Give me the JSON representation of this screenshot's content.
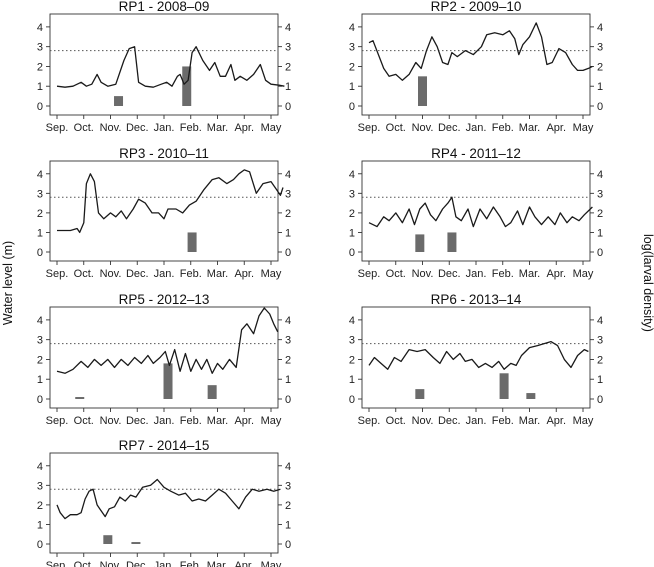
{
  "figure": {
    "y_label_left": "Water level (m)",
    "y_label_right": "log(larval density)"
  },
  "chart_data": [
    {
      "type": "line",
      "title": "RP1 - 2008–09",
      "x_categories": [
        "Sep.",
        "Oct.",
        "Nov.",
        "Dec.",
        "Jan.",
        "Feb.",
        "Mar.",
        "Apr.",
        "May"
      ],
      "ylim_left": [
        0,
        4.5
      ],
      "yticks_left": [
        0,
        1,
        2,
        3,
        4
      ],
      "ylim_right": [
        0,
        4.5
      ],
      "yticks_right": [
        0,
        1,
        2,
        3,
        4
      ],
      "reference_line": 2.8,
      "water_level": [
        [
          0,
          1.0
        ],
        [
          0.3,
          0.95
        ],
        [
          0.6,
          1.0
        ],
        [
          0.9,
          1.2
        ],
        [
          1.1,
          1.0
        ],
        [
          1.3,
          1.1
        ],
        [
          1.5,
          1.6
        ],
        [
          1.65,
          1.2
        ],
        [
          1.9,
          1.0
        ],
        [
          2.2,
          1.1
        ],
        [
          2.5,
          2.3
        ],
        [
          2.7,
          2.9
        ],
        [
          2.9,
          3.0
        ],
        [
          3.05,
          1.2
        ],
        [
          3.3,
          1.0
        ],
        [
          3.6,
          0.95
        ],
        [
          3.9,
          1.1
        ],
        [
          4.1,
          1.2
        ],
        [
          4.3,
          1.0
        ],
        [
          4.5,
          1.5
        ],
        [
          4.6,
          1.6
        ],
        [
          4.75,
          1.1
        ],
        [
          4.9,
          1.3
        ],
        [
          5.05,
          2.7
        ],
        [
          5.2,
          3.0
        ],
        [
          5.45,
          2.3
        ],
        [
          5.7,
          1.8
        ],
        [
          5.9,
          2.2
        ],
        [
          6.1,
          1.5
        ],
        [
          6.3,
          1.5
        ],
        [
          6.5,
          2.1
        ],
        [
          6.65,
          1.3
        ],
        [
          6.85,
          1.5
        ],
        [
          7.1,
          1.3
        ],
        [
          7.35,
          1.6
        ],
        [
          7.6,
          2.1
        ],
        [
          7.8,
          1.3
        ],
        [
          8.0,
          1.1
        ],
        [
          8.3,
          1.05
        ],
        [
          8.5,
          1.0
        ]
      ],
      "larval_density": [
        {
          "x": 2.3,
          "value": 0.5
        },
        {
          "x": 4.85,
          "value": 2.0
        }
      ]
    },
    {
      "type": "line",
      "title": "RP2 - 2009–10",
      "x_categories": [
        "Sep.",
        "Oct.",
        "Nov.",
        "Dec.",
        "Jan.",
        "Feb.",
        "Mar.",
        "Apr.",
        "May"
      ],
      "ylim_left": [
        0,
        4.5
      ],
      "yticks_left": [
        0,
        1,
        2,
        3,
        4
      ],
      "ylim_right": [
        0,
        4.5
      ],
      "yticks_right": [
        0,
        1,
        2,
        3,
        4
      ],
      "reference_line": 2.8,
      "water_level": [
        [
          0,
          3.2
        ],
        [
          0.15,
          3.3
        ],
        [
          0.35,
          2.6
        ],
        [
          0.55,
          1.9
        ],
        [
          0.75,
          1.5
        ],
        [
          1.0,
          1.6
        ],
        [
          1.25,
          1.3
        ],
        [
          1.5,
          1.6
        ],
        [
          1.75,
          2.2
        ],
        [
          1.95,
          1.9
        ],
        [
          2.15,
          2.8
        ],
        [
          2.35,
          3.5
        ],
        [
          2.55,
          3.0
        ],
        [
          2.75,
          2.2
        ],
        [
          2.95,
          2.1
        ],
        [
          3.1,
          2.7
        ],
        [
          3.3,
          2.5
        ],
        [
          3.6,
          2.8
        ],
        [
          3.9,
          2.6
        ],
        [
          4.2,
          3.0
        ],
        [
          4.4,
          3.6
        ],
        [
          4.7,
          3.7
        ],
        [
          5.0,
          3.6
        ],
        [
          5.25,
          3.8
        ],
        [
          5.45,
          3.4
        ],
        [
          5.6,
          2.6
        ],
        [
          5.75,
          3.1
        ],
        [
          6.0,
          3.5
        ],
        [
          6.25,
          4.2
        ],
        [
          6.45,
          3.5
        ],
        [
          6.65,
          2.1
        ],
        [
          6.85,
          2.2
        ],
        [
          7.1,
          2.9
        ],
        [
          7.35,
          2.7
        ],
        [
          7.6,
          2.1
        ],
        [
          7.8,
          1.8
        ],
        [
          8.0,
          1.8
        ],
        [
          8.2,
          1.9
        ],
        [
          8.35,
          2.0
        ]
      ],
      "larval_density": [
        {
          "x": 2.0,
          "value": 1.5
        }
      ]
    },
    {
      "type": "line",
      "title": "RP3 - 2010–11",
      "x_categories": [
        "Sep.",
        "Oct.",
        "Nov.",
        "Dec.",
        "Jan.",
        "Feb.",
        "Mar.",
        "Apr.",
        "May"
      ],
      "ylim_left": [
        0,
        4.5
      ],
      "yticks_left": [
        0,
        1,
        2,
        3,
        4
      ],
      "ylim_right": [
        0,
        4.5
      ],
      "yticks_right": [
        0,
        1,
        2,
        3,
        4
      ],
      "reference_line": 2.8,
      "water_level": [
        [
          0,
          1.1
        ],
        [
          0.5,
          1.1
        ],
        [
          0.75,
          1.2
        ],
        [
          0.85,
          1.0
        ],
        [
          1.0,
          1.5
        ],
        [
          1.1,
          3.5
        ],
        [
          1.25,
          4.0
        ],
        [
          1.4,
          3.6
        ],
        [
          1.55,
          2.0
        ],
        [
          1.75,
          1.7
        ],
        [
          2.0,
          2.0
        ],
        [
          2.2,
          1.8
        ],
        [
          2.4,
          2.1
        ],
        [
          2.6,
          1.7
        ],
        [
          2.85,
          2.2
        ],
        [
          3.05,
          2.7
        ],
        [
          3.3,
          2.5
        ],
        [
          3.55,
          2.0
        ],
        [
          3.8,
          2.0
        ],
        [
          4.0,
          1.7
        ],
        [
          4.15,
          2.2
        ],
        [
          4.45,
          2.2
        ],
        [
          4.7,
          2.0
        ],
        [
          4.95,
          2.4
        ],
        [
          5.2,
          2.6
        ],
        [
          5.5,
          3.2
        ],
        [
          5.8,
          3.7
        ],
        [
          6.05,
          3.8
        ],
        [
          6.35,
          3.5
        ],
        [
          6.6,
          3.7
        ],
        [
          6.8,
          4.0
        ],
        [
          7.0,
          4.2
        ],
        [
          7.2,
          4.1
        ],
        [
          7.45,
          3.0
        ],
        [
          7.7,
          3.5
        ],
        [
          8.0,
          3.6
        ],
        [
          8.2,
          3.2
        ],
        [
          8.35,
          2.9
        ],
        [
          8.45,
          3.3
        ]
      ],
      "larval_density": [
        {
          "x": 5.05,
          "value": 1.0
        }
      ]
    },
    {
      "type": "line",
      "title": "RP4 - 2011–12",
      "x_categories": [
        "Sep.",
        "Oct.",
        "Nov.",
        "Dec.",
        "Jan.",
        "Feb.",
        "Mar.",
        "Apr.",
        "May"
      ],
      "ylim_left": [
        0,
        4.5
      ],
      "yticks_left": [
        0,
        1,
        2,
        3,
        4
      ],
      "ylim_right": [
        0,
        4.5
      ],
      "yticks_right": [
        0,
        1,
        2,
        3,
        4
      ],
      "reference_line": 2.8,
      "water_level": [
        [
          0,
          1.5
        ],
        [
          0.3,
          1.3
        ],
        [
          0.55,
          1.8
        ],
        [
          0.75,
          1.6
        ],
        [
          1.0,
          2.0
        ],
        [
          1.25,
          1.5
        ],
        [
          1.5,
          2.2
        ],
        [
          1.7,
          1.4
        ],
        [
          1.9,
          2.2
        ],
        [
          2.1,
          2.5
        ],
        [
          2.3,
          1.9
        ],
        [
          2.5,
          1.6
        ],
        [
          2.75,
          2.2
        ],
        [
          2.95,
          2.5
        ],
        [
          3.1,
          2.8
        ],
        [
          3.25,
          1.8
        ],
        [
          3.45,
          1.6
        ],
        [
          3.7,
          2.2
        ],
        [
          3.9,
          1.3
        ],
        [
          4.15,
          2.2
        ],
        [
          4.4,
          1.7
        ],
        [
          4.65,
          2.3
        ],
        [
          4.9,
          1.8
        ],
        [
          5.1,
          1.3
        ],
        [
          5.3,
          1.5
        ],
        [
          5.55,
          2.1
        ],
        [
          5.75,
          1.4
        ],
        [
          6.0,
          2.3
        ],
        [
          6.2,
          1.8
        ],
        [
          6.45,
          1.4
        ],
        [
          6.7,
          1.8
        ],
        [
          6.95,
          1.4
        ],
        [
          7.15,
          2.0
        ],
        [
          7.4,
          1.5
        ],
        [
          7.6,
          1.8
        ],
        [
          7.85,
          1.6
        ],
        [
          8.05,
          1.9
        ],
        [
          8.2,
          2.1
        ],
        [
          8.35,
          2.3
        ]
      ],
      "larval_density": [
        {
          "x": 1.9,
          "value": 0.9
        },
        {
          "x": 3.1,
          "value": 1.0
        }
      ]
    },
    {
      "type": "line",
      "title": "RP5 - 2012–13",
      "x_categories": [
        "Sep.",
        "Oct.",
        "Nov.",
        "Dec.",
        "Jan.",
        "Feb.",
        "Mar.",
        "Apr.",
        "May"
      ],
      "ylim_left": [
        0,
        4.5
      ],
      "yticks_left": [
        0,
        1,
        2,
        3,
        4
      ],
      "ylim_right": [
        0,
        4.5
      ],
      "yticks_right": [
        0,
        1,
        2,
        3,
        4
      ],
      "reference_line": 2.8,
      "water_level": [
        [
          0,
          1.4
        ],
        [
          0.3,
          1.3
        ],
        [
          0.6,
          1.5
        ],
        [
          0.9,
          1.9
        ],
        [
          1.15,
          1.6
        ],
        [
          1.4,
          2.0
        ],
        [
          1.65,
          1.7
        ],
        [
          1.9,
          2.0
        ],
        [
          2.15,
          1.6
        ],
        [
          2.4,
          2.0
        ],
        [
          2.65,
          1.7
        ],
        [
          2.9,
          2.1
        ],
        [
          3.15,
          1.8
        ],
        [
          3.4,
          2.2
        ],
        [
          3.6,
          1.8
        ],
        [
          3.85,
          2.1
        ],
        [
          4.05,
          2.4
        ],
        [
          4.2,
          1.7
        ],
        [
          4.4,
          2.5
        ],
        [
          4.6,
          1.4
        ],
        [
          4.8,
          2.3
        ],
        [
          5.0,
          1.4
        ],
        [
          5.2,
          2.0
        ],
        [
          5.4,
          1.5
        ],
        [
          5.6,
          2.0
        ],
        [
          5.8,
          1.3
        ],
        [
          6.0,
          1.8
        ],
        [
          6.2,
          1.5
        ],
        [
          6.45,
          2.0
        ],
        [
          6.7,
          1.6
        ],
        [
          6.9,
          3.5
        ],
        [
          7.1,
          3.8
        ],
        [
          7.35,
          3.3
        ],
        [
          7.55,
          4.2
        ],
        [
          7.75,
          4.6
        ],
        [
          7.95,
          4.3
        ],
        [
          8.1,
          3.8
        ],
        [
          8.25,
          3.4
        ]
      ],
      "larval_density": [
        {
          "x": 0.85,
          "value": 0.1
        },
        {
          "x": 4.15,
          "value": 1.8
        },
        {
          "x": 5.8,
          "value": 0.7
        }
      ]
    },
    {
      "type": "line",
      "title": "RP6 - 2013–14",
      "x_categories": [
        "Sep.",
        "Oct.",
        "Nov.",
        "Dec.",
        "Jan.",
        "Feb.",
        "Mar.",
        "Apr.",
        "May"
      ],
      "ylim_left": [
        0,
        4.5
      ],
      "yticks_left": [
        0,
        1,
        2,
        3,
        4
      ],
      "ylim_right": [
        0,
        4.5
      ],
      "yticks_right": [
        0,
        1,
        2,
        3,
        4
      ],
      "reference_line": 2.8,
      "water_level": [
        [
          0,
          1.7
        ],
        [
          0.2,
          2.1
        ],
        [
          0.45,
          1.8
        ],
        [
          0.7,
          1.5
        ],
        [
          0.95,
          2.1
        ],
        [
          1.2,
          1.9
        ],
        [
          1.5,
          2.5
        ],
        [
          1.8,
          2.4
        ],
        [
          2.1,
          2.5
        ],
        [
          2.4,
          2.1
        ],
        [
          2.65,
          1.8
        ],
        [
          2.9,
          2.4
        ],
        [
          3.15,
          2.0
        ],
        [
          3.4,
          2.3
        ],
        [
          3.6,
          1.9
        ],
        [
          3.85,
          2.0
        ],
        [
          4.1,
          1.6
        ],
        [
          4.35,
          1.8
        ],
        [
          4.6,
          1.6
        ],
        [
          4.85,
          1.9
        ],
        [
          5.05,
          1.5
        ],
        [
          5.3,
          1.8
        ],
        [
          5.5,
          1.7
        ],
        [
          5.7,
          2.2
        ],
        [
          6.0,
          2.6
        ],
        [
          6.3,
          2.7
        ],
        [
          6.55,
          2.8
        ],
        [
          6.8,
          2.9
        ],
        [
          7.05,
          2.7
        ],
        [
          7.3,
          2.0
        ],
        [
          7.55,
          1.6
        ],
        [
          7.8,
          2.2
        ],
        [
          8.05,
          2.5
        ],
        [
          8.2,
          2.4
        ]
      ],
      "larval_density": [
        {
          "x": 1.9,
          "value": 0.5
        },
        {
          "x": 5.05,
          "value": 1.3
        },
        {
          "x": 6.05,
          "value": 0.3
        }
      ]
    },
    {
      "type": "line",
      "title": "RP7 - 2014–15",
      "x_categories": [
        "Sep.",
        "Oct.",
        "Nov.",
        "Dec.",
        "Jan.",
        "Feb.",
        "Mar.",
        "Apr.",
        "May"
      ],
      "ylim_left": [
        0,
        4.5
      ],
      "yticks_left": [
        0,
        1,
        2,
        3,
        4
      ],
      "ylim_right": [
        0,
        4.5
      ],
      "yticks_right": [
        0,
        1,
        2,
        3,
        4
      ],
      "reference_line": 2.8,
      "water_level": [
        [
          0,
          2.0
        ],
        [
          0.12,
          1.6
        ],
        [
          0.3,
          1.3
        ],
        [
          0.5,
          1.5
        ],
        [
          0.75,
          1.5
        ],
        [
          0.9,
          1.6
        ],
        [
          1.05,
          2.3
        ],
        [
          1.2,
          2.7
        ],
        [
          1.35,
          2.8
        ],
        [
          1.5,
          2.0
        ],
        [
          1.65,
          1.7
        ],
        [
          1.8,
          1.4
        ],
        [
          1.95,
          1.8
        ],
        [
          2.15,
          1.9
        ],
        [
          2.35,
          2.4
        ],
        [
          2.55,
          2.2
        ],
        [
          2.75,
          2.5
        ],
        [
          2.95,
          2.4
        ],
        [
          3.2,
          2.9
        ],
        [
          3.5,
          3.0
        ],
        [
          3.75,
          3.3
        ],
        [
          4.0,
          2.9
        ],
        [
          4.25,
          2.7
        ],
        [
          4.55,
          2.5
        ],
        [
          4.8,
          2.6
        ],
        [
          5.05,
          2.2
        ],
        [
          5.3,
          2.3
        ],
        [
          5.55,
          2.2
        ],
        [
          5.8,
          2.5
        ],
        [
          6.05,
          2.8
        ],
        [
          6.3,
          2.6
        ],
        [
          6.55,
          2.2
        ],
        [
          6.8,
          1.8
        ],
        [
          7.05,
          2.4
        ],
        [
          7.3,
          2.8
        ],
        [
          7.55,
          2.7
        ],
        [
          7.85,
          2.8
        ],
        [
          8.1,
          2.7
        ],
        [
          8.35,
          2.8
        ]
      ],
      "larval_density": [
        {
          "x": 1.9,
          "value": 0.45
        },
        {
          "x": 2.95,
          "value": 0.1
        }
      ]
    }
  ]
}
